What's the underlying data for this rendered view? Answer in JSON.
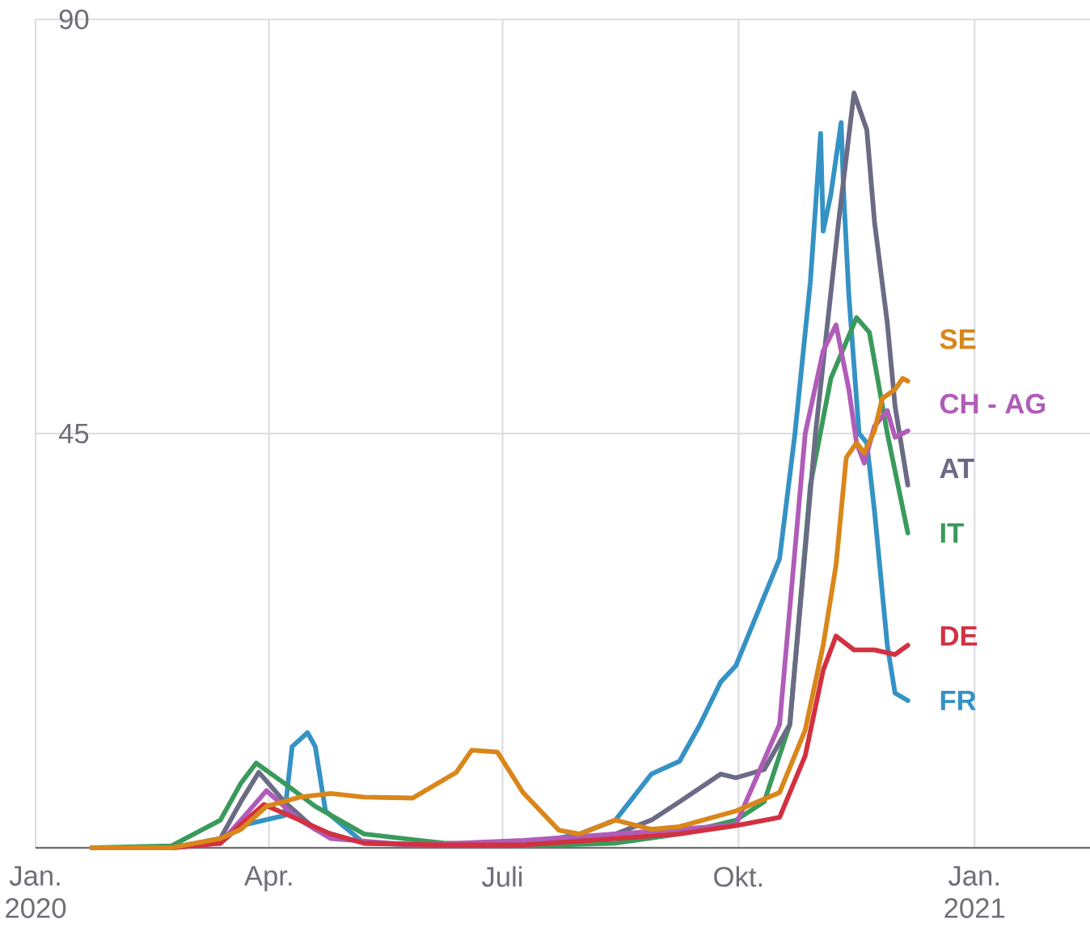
{
  "chart_data": {
    "type": "line",
    "xlim": [
      "2020-01-01",
      "2021-02-15"
    ],
    "ylim": [
      0,
      90
    ],
    "xticks": [
      {
        "value": "2020-01-01",
        "label": "Jan. 2020"
      },
      {
        "value": "2020-04-01",
        "label": "Apr."
      },
      {
        "value": "2020-07-01",
        "label": "Juli"
      },
      {
        "value": "2020-10-01",
        "label": "Okt."
      },
      {
        "value": "2021-01-01",
        "label": "Jan. 2021"
      }
    ],
    "yticks": [
      45,
      90
    ],
    "grid": true,
    "line_style": "solid",
    "series": [
      {
        "name": "FR",
        "color": "#3592c4",
        "x": [
          "2020-03-13",
          "2020-03-21",
          "2020-04-07",
          "2020-04-10",
          "2020-04-16",
          "2020-04-19",
          "2020-04-23",
          "2020-05-08",
          "2020-06-08",
          "2020-07-09",
          "2020-07-31",
          "2020-08-14",
          "2020-08-28",
          "2020-09-08",
          "2020-09-16",
          "2020-09-24",
          "2020-09-30",
          "2020-10-17",
          "2020-10-23",
          "2020-10-29",
          "2020-11-02",
          "2020-11-03",
          "2020-11-06",
          "2020-11-10",
          "2020-11-11",
          "2020-11-13",
          "2020-11-17",
          "2020-11-20",
          "2020-11-23",
          "2020-11-28",
          "2020-12-01",
          "2020-12-06"
        ],
        "values": [
          0.5,
          2.4,
          3.5,
          11,
          12.5,
          11,
          4,
          0.5,
          0.3,
          0.3,
          1.5,
          3,
          8,
          9.4,
          13.4,
          18,
          19.8,
          31.4,
          45,
          61.5,
          77.6,
          67,
          71,
          78.8,
          71,
          60,
          45,
          44,
          36.6,
          22,
          16.8,
          16
        ]
      },
      {
        "name": "IT",
        "color": "#3a9a5c",
        "x": [
          "2020-01-23",
          "2020-02-23",
          "2020-03-13",
          "2020-03-21",
          "2020-03-27",
          "2020-04-07",
          "2020-04-19",
          "2020-05-08",
          "2020-06-08",
          "2020-07-09",
          "2020-08-14",
          "2020-09-08",
          "2020-09-30",
          "2020-10-11",
          "2020-10-21",
          "2020-10-29",
          "2020-11-06",
          "2020-11-16",
          "2020-11-21",
          "2020-11-28",
          "2020-12-06"
        ],
        "values": [
          0,
          0.2,
          3,
          7,
          9.2,
          7,
          4.5,
          1.5,
          0.5,
          0.2,
          0.5,
          1.5,
          3,
          5,
          13.4,
          39.4,
          51,
          57.6,
          56,
          45,
          34.2
        ]
      },
      {
        "name": "AT",
        "color": "#6b6b86",
        "x": [
          "2020-01-23",
          "2020-02-23",
          "2020-03-13",
          "2020-03-21",
          "2020-03-28",
          "2020-04-07",
          "2020-04-19",
          "2020-05-08",
          "2020-06-08",
          "2020-07-09",
          "2020-08-14",
          "2020-08-28",
          "2020-09-08",
          "2020-09-24",
          "2020-09-30",
          "2020-10-11",
          "2020-10-21",
          "2020-10-31",
          "2020-11-09",
          "2020-11-15",
          "2020-11-20",
          "2020-11-23",
          "2020-11-28",
          "2020-12-01",
          "2020-12-06"
        ],
        "values": [
          0,
          0,
          1,
          5,
          8.2,
          5,
          2,
          0.5,
          0.2,
          0.3,
          1.5,
          3,
          5,
          8,
          7.6,
          8.5,
          13.4,
          45,
          68,
          82,
          78,
          68,
          57,
          48,
          39.4
        ]
      },
      {
        "name": "CH - AG",
        "color": "#b05cb8",
        "x": [
          "2020-01-23",
          "2020-02-23",
          "2020-03-13",
          "2020-03-21",
          "2020-03-31",
          "2020-04-13",
          "2020-04-25",
          "2020-05-27",
          "2020-07-09",
          "2020-08-14",
          "2020-09-08",
          "2020-09-30",
          "2020-10-17",
          "2020-10-27",
          "2020-11-03",
          "2020-11-08",
          "2020-11-13",
          "2020-11-16",
          "2020-11-19",
          "2020-11-23",
          "2020-11-28",
          "2020-12-01",
          "2020-12-06"
        ],
        "values": [
          0,
          0,
          0.5,
          3,
          6.2,
          3,
          1,
          0.3,
          0.8,
          1.5,
          2,
          2.5,
          13.4,
          45,
          54,
          56.8,
          49.8,
          44,
          41.8,
          45.8,
          47.5,
          44.6,
          45.3
        ]
      },
      {
        "name": "DE",
        "color": "#d33040",
        "x": [
          "2020-01-23",
          "2020-02-23",
          "2020-03-13",
          "2020-03-21",
          "2020-03-30",
          "2020-04-13",
          "2020-04-25",
          "2020-05-08",
          "2020-06-08",
          "2020-07-09",
          "2020-08-14",
          "2020-09-08",
          "2020-09-30",
          "2020-10-17",
          "2020-10-27",
          "2020-11-03",
          "2020-11-08",
          "2020-11-15",
          "2020-11-23",
          "2020-12-01",
          "2020-12-06"
        ],
        "values": [
          0,
          0,
          0.5,
          2.5,
          4.7,
          3,
          1.5,
          0.5,
          0.3,
          0.3,
          1,
          1.5,
          2.4,
          3.3,
          10,
          19.3,
          23,
          21.5,
          21.5,
          21,
          22
        ]
      },
      {
        "name": "SE",
        "color": "#d9861a",
        "x": [
          "2020-01-23",
          "2020-02-23",
          "2020-03-13",
          "2020-03-21",
          "2020-03-31",
          "2020-04-13",
          "2020-04-25",
          "2020-05-08",
          "2020-05-27",
          "2020-06-13",
          "2020-06-19",
          "2020-06-29",
          "2020-07-09",
          "2020-07-23",
          "2020-07-31",
          "2020-08-14",
          "2020-08-28",
          "2020-09-08",
          "2020-09-30",
          "2020-10-17",
          "2020-10-27",
          "2020-11-03",
          "2020-11-08",
          "2020-11-12",
          "2020-11-16",
          "2020-11-19",
          "2020-11-23",
          "2020-11-26",
          "2020-12-01",
          "2020-12-04",
          "2020-12-06"
        ],
        "values": [
          0,
          0,
          1,
          2,
          4.5,
          5.5,
          5.9,
          5.5,
          5.4,
          8.2,
          10.6,
          10.4,
          6,
          1.9,
          1.5,
          3,
          2,
          2.3,
          4,
          6,
          12.8,
          22,
          30.7,
          42.4,
          44,
          42.9,
          45.3,
          48.8,
          49.8,
          51,
          50.7
        ]
      }
    ]
  }
}
